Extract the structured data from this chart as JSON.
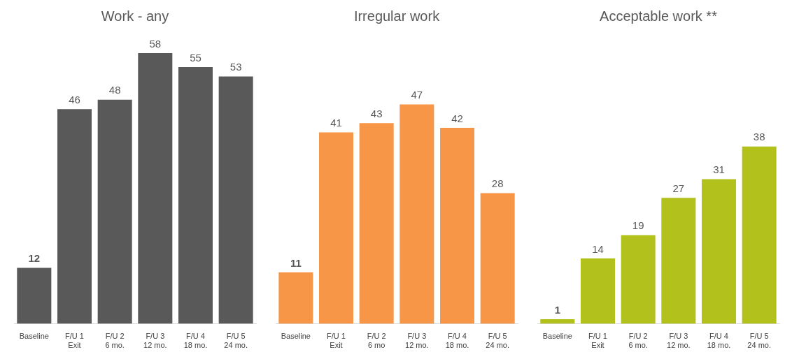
{
  "chart_data": [
    {
      "type": "bar",
      "title": "Work - any",
      "categories": [
        "Baseline",
        "F/U 1\nExit",
        "F/U 2\n6 mo.",
        "F/U 3\n12 mo.",
        "F/U 4\n18 mo.",
        "F/U 5\n24 mo."
      ],
      "values": [
        12,
        46,
        48,
        58,
        55,
        53
      ],
      "color": "#595959",
      "data_labels": true,
      "grid": false,
      "legend": false
    },
    {
      "type": "bar",
      "title": "Irregular work",
      "categories": [
        "Baseline",
        "F/U 1\nExit",
        "F/U 2\n6 mo",
        "F/U 3\n12 mo.",
        "F/U 4\n18 mo.",
        "F/U 5\n24 mo."
      ],
      "values": [
        11,
        41,
        43,
        47,
        42,
        28
      ],
      "color": "#f79646",
      "data_labels": true,
      "grid": false,
      "legend": false
    },
    {
      "type": "bar",
      "title": "Acceptable work **",
      "categories": [
        "Baseline",
        "F/U 1\nExit",
        "F/U 2\n6 mo.",
        "F/U 3\n12 mo.",
        "F/U 4\n18 mo.",
        "F/U 5\n24 mo."
      ],
      "values": [
        1,
        14,
        19,
        27,
        31,
        38
      ],
      "color": "#b3c11c",
      "data_labels": true,
      "grid": false,
      "legend": false
    }
  ]
}
